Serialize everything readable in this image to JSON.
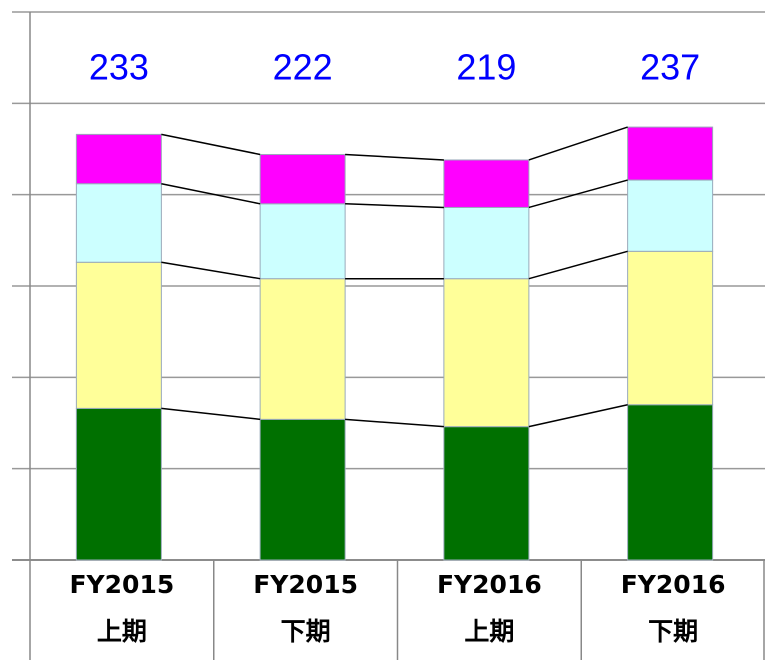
{
  "chart_data": {
    "type": "stacked_bar",
    "categories": [
      [
        "FY2015",
        "上期"
      ],
      [
        "FY2015",
        "下期"
      ],
      [
        "FY2016",
        "上期"
      ],
      [
        "FY2016",
        "下期"
      ]
    ],
    "series": [
      {
        "color": "#007000",
        "values": [
          83,
          77,
          73,
          85
        ]
      },
      {
        "color": "#ffff99",
        "values": [
          80,
          77,
          81,
          84
        ]
      },
      {
        "color": "#ccffff",
        "values": [
          43,
          41,
          39,
          39
        ]
      },
      {
        "color": "#ff00ff",
        "values": [
          27,
          27,
          26,
          29
        ]
      }
    ],
    "totals": [
      233,
      222,
      219,
      237
    ],
    "ylim": [
      0,
      300
    ],
    "yticks": [
      0,
      50,
      100,
      150,
      200,
      250,
      300
    ],
    "grid": true
  }
}
